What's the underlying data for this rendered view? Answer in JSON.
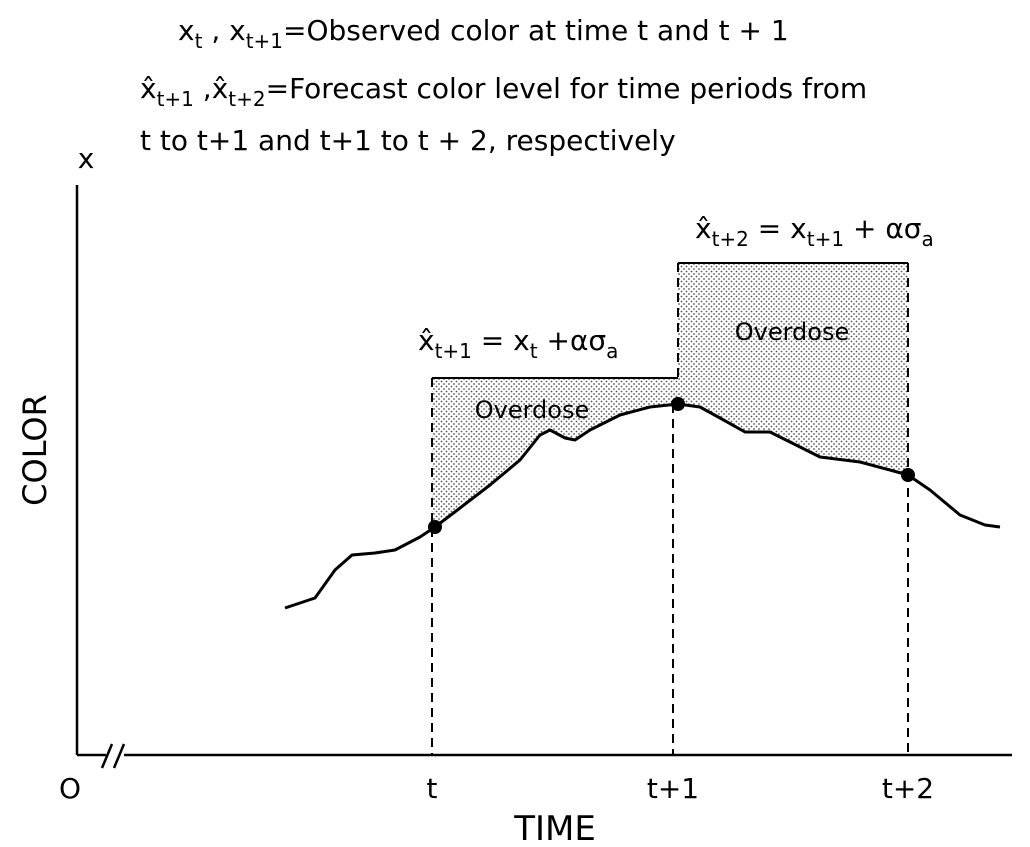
{
  "legend": {
    "lines": [
      [
        "x",
        "t",
        " , x",
        "t+1",
        "=Observed color at time t and t + 1"
      ],
      [
        "x̂",
        "t+1",
        " ,x̂",
        "t+2",
        "=Forecast color level for time periods from"
      ],
      [
        "t to t+1  and t+1  to t + 2, respectively"
      ]
    ]
  },
  "axes": {
    "y_symbol": "x",
    "y_label": "COLOR",
    "x_label": "TIME",
    "origin": "O",
    "x_ticks": [
      "t",
      "t+1",
      "t+2"
    ]
  },
  "annotations": {
    "equation_1": [
      "x̂",
      "t+1",
      " = x",
      "t",
      " +ασ",
      "a"
    ],
    "equation_2": [
      "x̂",
      "t+2",
      " = x",
      "t+1",
      " + ασ",
      "a"
    ],
    "region_1": "Overdose",
    "region_2": "Overdose"
  }
}
